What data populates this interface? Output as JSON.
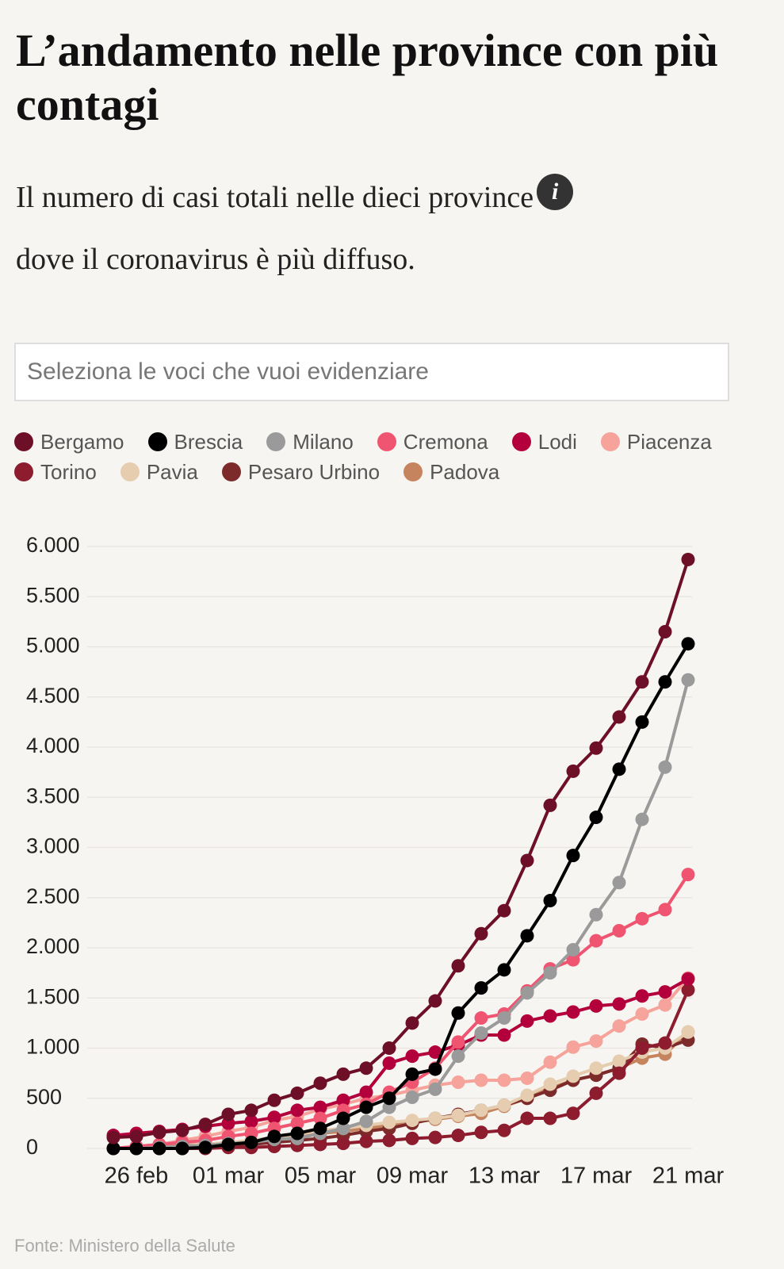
{
  "title": "L’andamento nelle province con più contagi",
  "subtitle": "Il numero di casi totali nelle dieci province dove il coronavirus è più diffuso.",
  "search_placeholder": "Seleziona le voci che vuoi evidenziare",
  "source": "Fonte: Ministero della Salute",
  "chart_data": {
    "type": "line",
    "categories": [
      null,
      "26 feb",
      null,
      null,
      null,
      "01 mar",
      null,
      null,
      null,
      "05 mar",
      null,
      null,
      null,
      "09 mar",
      null,
      null,
      null,
      "13 mar",
      null,
      null,
      null,
      "17 mar",
      null,
      null,
      null,
      "21 mar"
    ],
    "ylim": [
      0,
      6000
    ],
    "yticks": [
      0,
      500,
      {
        "value": 1000,
        "label": "1.000"
      },
      {
        "value": 1500,
        "label": "1.500"
      },
      {
        "value": 2000,
        "label": "2.000"
      },
      {
        "value": 2500,
        "label": "2.500"
      },
      {
        "value": 3000,
        "label": "3.000"
      },
      {
        "value": 3500,
        "label": "3.500"
      },
      {
        "value": 4000,
        "label": "4.000"
      },
      {
        "value": 4500,
        "label": "4.500"
      },
      {
        "value": 5000,
        "label": "5.000"
      },
      {
        "value": 5500,
        "label": "5.500"
      },
      {
        "value": 6000,
        "label": "6.000"
      }
    ],
    "grid": true,
    "series": [
      {
        "name": "Bergamo",
        "color": "#6e0f28",
        "values": [
          110,
          120,
          160,
          180,
          240,
          340,
          380,
          480,
          550,
          650,
          740,
          800,
          1000,
          1250,
          1470,
          1820,
          2140,
          2370,
          2870,
          3420,
          3760,
          3990,
          4300,
          4650,
          5150,
          5870
        ]
      },
      {
        "name": "Brescia",
        "color": "#000000",
        "values": [
          0,
          0,
          0,
          0,
          10,
          40,
          60,
          120,
          150,
          200,
          300,
          410,
          500,
          740,
          790,
          1350,
          1600,
          1780,
          2120,
          2470,
          2920,
          3300,
          3780,
          4250,
          4650,
          5030
        ]
      },
      {
        "name": "Milano",
        "color": "#9a9a9a",
        "values": [
          0,
          0,
          10,
          20,
          30,
          50,
          60,
          90,
          100,
          150,
          200,
          270,
          410,
          510,
          590,
          920,
          1150,
          1300,
          1550,
          1750,
          1980,
          2330,
          2650,
          3280,
          3800,
          4670
        ]
      },
      {
        "name": "Cremona",
        "color": "#ef5470",
        "values": [
          0,
          20,
          40,
          60,
          80,
          120,
          150,
          200,
          250,
          300,
          380,
          440,
          560,
          660,
          800,
          1060,
          1300,
          1340,
          1570,
          1790,
          1880,
          2070,
          2170,
          2290,
          2380,
          2730
        ]
      },
      {
        "name": "Lodi",
        "color": "#b3003c",
        "values": [
          130,
          150,
          170,
          190,
          220,
          250,
          270,
          310,
          380,
          410,
          480,
          560,
          850,
          920,
          960,
          1030,
          1130,
          1130,
          1270,
          1320,
          1360,
          1420,
          1440,
          1520,
          1560,
          1690
        ]
      },
      {
        "name": "Piacenza",
        "color": "#f5a39b",
        "values": [
          0,
          20,
          40,
          80,
          120,
          170,
          210,
          280,
          320,
          390,
          440,
          500,
          530,
          580,
          630,
          660,
          680,
          680,
          700,
          860,
          1010,
          1070,
          1220,
          1340,
          1430,
          1700
        ]
      },
      {
        "name": "Torino",
        "color": "#8c1c2e",
        "values": [
          0,
          0,
          0,
          0,
          0,
          10,
          10,
          20,
          30,
          40,
          50,
          70,
          80,
          100,
          110,
          130,
          160,
          180,
          300,
          300,
          350,
          550,
          750,
          1000,
          1050,
          1580
        ]
      },
      {
        "name": "Pavia",
        "color": "#e6cdb0",
        "values": [
          0,
          0,
          10,
          20,
          40,
          60,
          80,
          110,
          140,
          180,
          200,
          230,
          260,
          280,
          300,
          330,
          380,
          430,
          530,
          640,
          720,
          800,
          870,
          960,
          1000,
          1160
        ]
      },
      {
        "name": "Pesaro Urbino",
        "color": "#7d2a2a",
        "values": [
          0,
          0,
          0,
          0,
          10,
          20,
          40,
          60,
          80,
          100,
          130,
          170,
          200,
          250,
          300,
          340,
          380,
          430,
          500,
          580,
          680,
          730,
          800,
          1040,
          1000,
          1080
        ]
      },
      {
        "name": "Padova",
        "color": "#c6845e",
        "values": [
          0,
          10,
          20,
          30,
          40,
          60,
          70,
          90,
          120,
          150,
          170,
          200,
          230,
          260,
          290,
          320,
          350,
          420,
          500,
          600,
          680,
          730,
          800,
          900,
          940,
          1160
        ]
      }
    ]
  }
}
